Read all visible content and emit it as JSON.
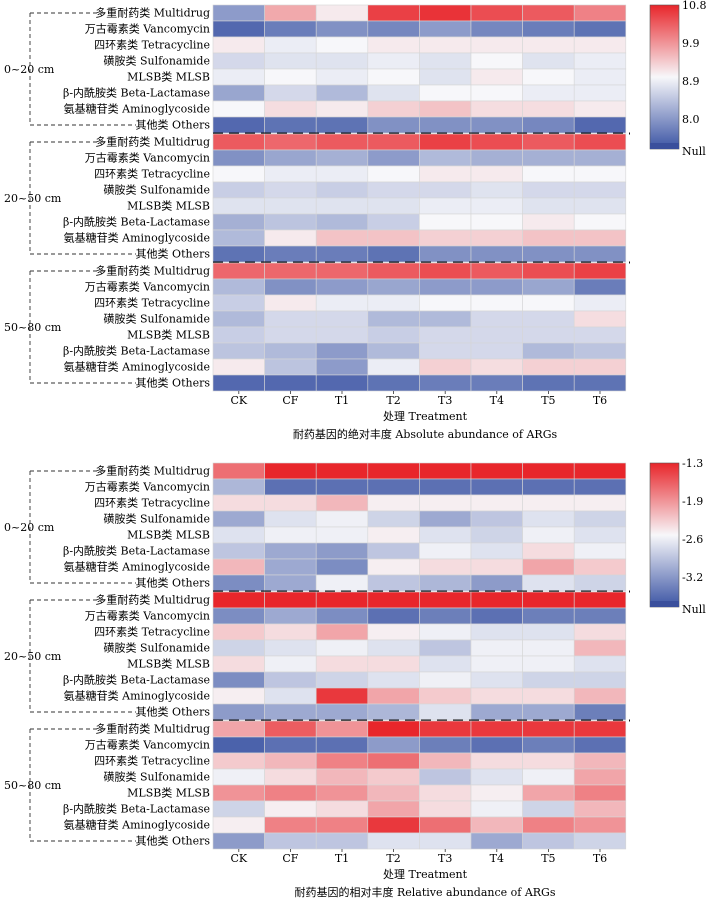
{
  "treatments": [
    "CK",
    "CF",
    "T1",
    "T2",
    "T3",
    "T4",
    "T5",
    "T6"
  ],
  "arg_types": [
    "多重耐药类 Multidrug",
    "万古霉素类 Vancomycin",
    "四环素类 Tetracycline",
    "磺胺类 Sulfonamide",
    "MLSB类 MLSB",
    "β-内酰胺类 Beta-Lactamase",
    "氨基糖苷类 Aminoglycoside",
    "其他类 Others"
  ],
  "depths": [
    "0~20 cm",
    "20~50 cm",
    "50~80 cm"
  ],
  "xlabel": "处理 Treatment",
  "colors": {
    "low": "#3b54a4",
    "mid": "#f7f7fa",
    "high": "#e8262b"
  },
  "chart_data": [
    {
      "type": "heatmap",
      "title": "耐药基因的绝对丰度 Absolute abundance of ARGs",
      "xlabel": "处理 Treatment",
      "colorbar_ticks": [
        "10.8",
        "9.9",
        "8.9",
        "8.0",
        "Null"
      ],
      "range": [
        7.6,
        10.8
      ],
      "rows": [
        {
          "depth": "0~20 cm",
          "values": [
            [
              8.3,
              9.8,
              9.3,
              10.6,
              10.7,
              10.5,
              10.4,
              10.1
            ],
            [
              7.8,
              8.0,
              8.2,
              8.1,
              8.3,
              8.1,
              8.0,
              7.9
            ],
            [
              9.3,
              9.1,
              9.2,
              9.3,
              9.3,
              9.3,
              9.3,
              9.3
            ],
            [
              8.9,
              9.0,
              9.0,
              9.1,
              9.0,
              9.2,
              9.0,
              9.1
            ],
            [
              9.1,
              9.2,
              9.1,
              9.2,
              9.0,
              9.3,
              9.2,
              9.1
            ],
            [
              8.4,
              8.9,
              8.6,
              9.0,
              9.2,
              9.2,
              9.1,
              9.1
            ],
            [
              9.2,
              9.4,
              9.3,
              9.5,
              9.6,
              9.4,
              9.4,
              9.3
            ],
            [
              7.8,
              7.9,
              7.9,
              8.2,
              8.2,
              8.2,
              8.1,
              7.8
            ]
          ]
        },
        {
          "depth": "20~50 cm",
          "values": [
            [
              10.4,
              10.3,
              10.4,
              10.4,
              10.6,
              10.5,
              10.4,
              10.5
            ],
            [
              8.2,
              8.4,
              8.5,
              8.3,
              8.6,
              8.5,
              8.5,
              8.5
            ],
            [
              9.2,
              9.1,
              9.1,
              9.2,
              9.3,
              9.3,
              9.2,
              9.2
            ],
            [
              8.8,
              8.9,
              8.8,
              8.9,
              8.9,
              9.0,
              8.9,
              8.9
            ],
            [
              9.0,
              9.0,
              9.0,
              9.0,
              9.1,
              9.1,
              9.0,
              9.0
            ],
            [
              8.5,
              8.7,
              8.6,
              8.8,
              9.2,
              9.2,
              9.3,
              9.2
            ],
            [
              8.6,
              9.3,
              9.6,
              9.6,
              9.5,
              9.5,
              9.6,
              9.6
            ],
            [
              7.9,
              8.0,
              8.0,
              7.9,
              8.2,
              8.2,
              8.2,
              8.2
            ]
          ]
        },
        {
          "depth": "50~80 cm",
          "values": [
            [
              10.3,
              10.3,
              10.3,
              10.4,
              10.5,
              10.4,
              10.5,
              10.6
            ],
            [
              8.6,
              8.2,
              8.3,
              8.4,
              8.3,
              8.3,
              8.4,
              8.0
            ],
            [
              8.8,
              9.3,
              9.1,
              9.1,
              9.2,
              9.2,
              9.2,
              9.1
            ],
            [
              8.6,
              8.9,
              8.9,
              8.6,
              8.6,
              8.9,
              8.9,
              9.4
            ],
            [
              8.8,
              8.9,
              8.9,
              8.8,
              8.9,
              8.9,
              8.9,
              8.9
            ],
            [
              8.7,
              8.6,
              8.3,
              8.6,
              8.9,
              8.9,
              8.6,
              8.7
            ],
            [
              9.3,
              8.7,
              8.3,
              9.1,
              9.5,
              9.4,
              9.5,
              9.5
            ],
            [
              7.8,
              7.8,
              7.8,
              7.9,
              8.0,
              8.0,
              7.9,
              7.9
            ]
          ]
        }
      ]
    },
    {
      "type": "heatmap",
      "title": "耐药基因的相对丰度 Relative abundance of ARGs",
      "xlabel": "处理 Treatment",
      "colorbar_ticks": [
        "-1.3",
        "-1.9",
        "-2.6",
        "-3.2",
        "Null"
      ],
      "range": [
        -3.6,
        -1.3
      ],
      "rows": [
        {
          "depth": "0~20 cm",
          "values": [
            [
              -1.7,
              -1.3,
              -1.3,
              -1.3,
              -1.3,
              -1.3,
              -1.3,
              -1.3
            ],
            [
              -2.9,
              -3.4,
              -3.4,
              -3.4,
              -3.4,
              -3.4,
              -3.4,
              -3.4
            ],
            [
              -2.3,
              -2.3,
              -2.1,
              -2.4,
              -2.4,
              -2.4,
              -2.4,
              -2.4
            ],
            [
              -3.0,
              -2.6,
              -2.5,
              -2.7,
              -3.0,
              -2.8,
              -2.6,
              -2.7
            ],
            [
              -2.6,
              -2.5,
              -2.5,
              -2.4,
              -2.6,
              -2.7,
              -2.5,
              -2.6
            ],
            [
              -2.8,
              -3.0,
              -3.1,
              -2.8,
              -2.5,
              -2.6,
              -2.3,
              -2.5
            ],
            [
              -2.1,
              -3.0,
              -3.2,
              -2.4,
              -2.3,
              -2.3,
              -2.0,
              -2.2
            ],
            [
              -3.2,
              -3.0,
              -2.5,
              -2.8,
              -2.9,
              -3.1,
              -2.6,
              -2.7
            ]
          ]
        },
        {
          "depth": "20~50 cm",
          "values": [
            [
              -1.3,
              -1.3,
              -1.3,
              -1.3,
              -1.3,
              -1.3,
              -1.3,
              -1.3
            ],
            [
              -3.2,
              -3.0,
              -3.2,
              -3.4,
              -3.3,
              -3.4,
              -3.3,
              -3.3
            ],
            [
              -2.2,
              -2.3,
              -2.0,
              -2.4,
              -2.5,
              -2.6,
              -2.6,
              -2.3
            ],
            [
              -2.7,
              -2.6,
              -2.5,
              -2.6,
              -2.8,
              -2.5,
              -2.5,
              -2.1
            ],
            [
              -2.3,
              -2.5,
              -2.3,
              -2.3,
              -2.6,
              -2.5,
              -2.5,
              -2.6
            ],
            [
              -3.2,
              -2.8,
              -2.7,
              -2.6,
              -2.5,
              -2.6,
              -2.7,
              -2.7
            ],
            [
              -2.4,
              -2.6,
              -1.4,
              -2.0,
              -2.2,
              -2.3,
              -2.3,
              -2.1
            ],
            [
              -3.1,
              -3.0,
              -3.0,
              -2.9,
              -2.6,
              -3.0,
              -3.0,
              -3.3
            ]
          ]
        },
        {
          "depth": "50~80 cm",
          "values": [
            [
              -2.0,
              -1.6,
              -1.9,
              -1.3,
              -1.4,
              -1.4,
              -1.4,
              -1.4
            ],
            [
              -3.5,
              -3.4,
              -3.4,
              -3.1,
              -3.3,
              -3.4,
              -3.3,
              -3.4
            ],
            [
              -2.2,
              -2.1,
              -1.8,
              -1.7,
              -2.1,
              -2.3,
              -2.3,
              -2.1
            ],
            [
              -2.5,
              -2.3,
              -2.1,
              -2.2,
              -2.8,
              -2.6,
              -2.5,
              -2.0
            ],
            [
              -1.9,
              -1.8,
              -1.9,
              -2.1,
              -2.3,
              -2.4,
              -2.0,
              -1.8
            ],
            [
              -2.7,
              -2.4,
              -2.3,
              -2.0,
              -2.3,
              -2.5,
              -2.7,
              -2.1
            ],
            [
              -2.4,
              -1.8,
              -1.8,
              -1.4,
              -1.7,
              -2.1,
              -1.8,
              -1.9
            ],
            [
              -3.1,
              -2.8,
              -2.8,
              -2.6,
              -2.6,
              -3.0,
              -2.8,
              -2.7
            ]
          ]
        }
      ]
    }
  ]
}
